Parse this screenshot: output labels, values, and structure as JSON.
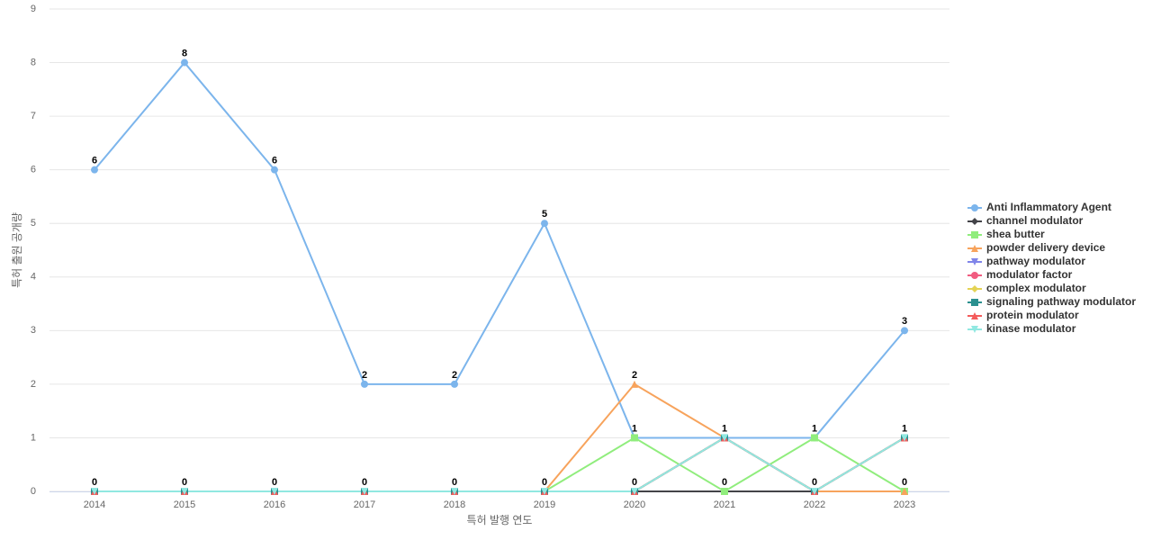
{
  "chart_data": {
    "type": "line",
    "xlabel": "특허 발행 연도",
    "ylabel": "특허 출원 공개량",
    "categories": [
      "2014",
      "2015",
      "2016",
      "2017",
      "2018",
      "2019",
      "2020",
      "2021",
      "2022",
      "2023"
    ],
    "ylim": [
      0,
      9
    ],
    "yticks": [
      0,
      1,
      2,
      3,
      4,
      5,
      6,
      7,
      8,
      9
    ],
    "grid": true,
    "legend": "right",
    "series": [
      {
        "name": "Anti Inflammatory Agent",
        "color": "#7cb5ec",
        "values": [
          6,
          8,
          6,
          2,
          2,
          5,
          1,
          1,
          1,
          3
        ]
      },
      {
        "name": "channel modulator",
        "color": "#434348",
        "values": [
          0,
          0,
          0,
          0,
          0,
          0,
          0,
          0,
          0,
          0
        ]
      },
      {
        "name": "shea butter",
        "color": "#90ed7d",
        "values": [
          0,
          0,
          0,
          0,
          0,
          0,
          1,
          0,
          1,
          0
        ]
      },
      {
        "name": "powder delivery device",
        "color": "#f7a35c",
        "values": [
          0,
          0,
          0,
          0,
          0,
          0,
          2,
          1,
          0,
          0
        ]
      },
      {
        "name": "pathway modulator",
        "color": "#8085e9",
        "values": [
          0,
          0,
          0,
          0,
          0,
          0,
          0,
          1,
          0,
          1
        ]
      },
      {
        "name": "modulator factor",
        "color": "#f15c80",
        "values": [
          0,
          0,
          0,
          0,
          0,
          0,
          0,
          1,
          0,
          1
        ]
      },
      {
        "name": "complex modulator",
        "color": "#e4d354",
        "values": [
          0,
          0,
          0,
          0,
          0,
          0,
          0,
          1,
          0,
          1
        ]
      },
      {
        "name": "signaling pathway modulator",
        "color": "#2b908f",
        "values": [
          0,
          0,
          0,
          0,
          0,
          0,
          0,
          1,
          0,
          1
        ]
      },
      {
        "name": "protein modulator",
        "color": "#f45b5b",
        "values": [
          0,
          0,
          0,
          0,
          0,
          0,
          0,
          1,
          0,
          1
        ]
      },
      {
        "name": "kinase modulator",
        "color": "#91e8e1",
        "values": [
          0,
          0,
          0,
          0,
          0,
          0,
          0,
          1,
          0,
          1
        ]
      }
    ]
  }
}
